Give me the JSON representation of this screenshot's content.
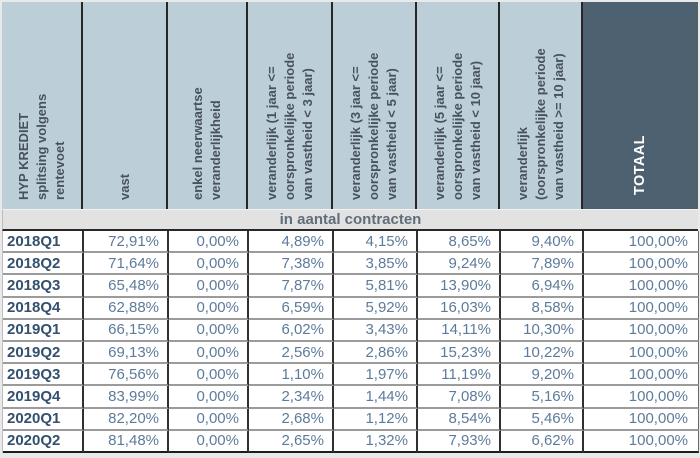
{
  "page": {
    "background": "#e9e9e9"
  },
  "table": {
    "band": "in aantal contracten",
    "columns": [
      "HYP KREDIET\nsplitsing volgens\nrentevoet",
      "vast",
      "enkel neerwaartse\nveranderlijkheid",
      "veranderlijk (1 jaar <=\noorspronkelijke periode\nvan vastheid < 3 jaar)",
      "veranderlijk (3 jaar <=\noorspronkelijke periode\nvan vastheid < 5 jaar)",
      "veranderlijk (5 jaar <=\noorspronkelijke periode\nvan vastheid < 10 jaar)",
      "veranderlijk\n(oorspronkelijke periode\nvan vastheid >= 10 jaar)",
      "TOTAAL"
    ],
    "rows": [
      {
        "label": "2018Q1",
        "values": [
          "72,91%",
          "0,00%",
          "4,89%",
          "4,15%",
          "8,65%",
          "9,40%",
          "100,00%"
        ]
      },
      {
        "label": "2018Q2",
        "values": [
          "71,64%",
          "0,00%",
          "7,38%",
          "3,85%",
          "9,24%",
          "7,89%",
          "100,00%"
        ]
      },
      {
        "label": "2018Q3",
        "values": [
          "65,48%",
          "0,00%",
          "7,87%",
          "5,81%",
          "13,90%",
          "6,94%",
          "100,00%"
        ]
      },
      {
        "label": "2018Q4",
        "values": [
          "62,88%",
          "0,00%",
          "6,59%",
          "5,92%",
          "16,03%",
          "8,58%",
          "100,00%"
        ]
      },
      {
        "label": "2019Q1",
        "values": [
          "66,15%",
          "0,00%",
          "6,02%",
          "3,43%",
          "14,11%",
          "10,30%",
          "100,00%"
        ]
      },
      {
        "label": "2019Q2",
        "values": [
          "69,13%",
          "0,00%",
          "2,56%",
          "2,86%",
          "15,23%",
          "10,22%",
          "100,00%"
        ]
      },
      {
        "label": "2019Q3",
        "values": [
          "76,56%",
          "0,00%",
          "1,10%",
          "1,97%",
          "11,19%",
          "9,20%",
          "100,00%"
        ]
      },
      {
        "label": "2019Q4",
        "values": [
          "83,99%",
          "0,00%",
          "2,34%",
          "1,44%",
          "7,08%",
          "5,16%",
          "100,00%"
        ]
      },
      {
        "label": "2020Q1",
        "values": [
          "82,20%",
          "0,00%",
          "2,68%",
          "1,12%",
          "8,54%",
          "5,46%",
          "100,00%"
        ]
      },
      {
        "label": "2020Q2",
        "values": [
          "81,48%",
          "0,00%",
          "2,65%",
          "1,32%",
          "7,93%",
          "6,62%",
          "100,00%"
        ]
      }
    ],
    "colors": {
      "header_bg": "#bccfd8",
      "totaal_bg": "#4d6170",
      "band_bg": "#e2e2e2",
      "header_text": "#47525c",
      "totaal_text": "#ffffff",
      "label_text": "#33506e",
      "value_text": "#5d7b9a",
      "band_text": "#5f6e7a"
    }
  },
  "chart_data": {
    "type": "table",
    "title": "HYP KREDIET splitsing volgens rentevoet",
    "unit_note": "in aantal contracten",
    "categories": [
      "2018Q1",
      "2018Q2",
      "2018Q3",
      "2018Q4",
      "2019Q1",
      "2019Q2",
      "2019Q3",
      "2019Q4",
      "2020Q1",
      "2020Q2"
    ],
    "values_unit": "%",
    "series": [
      {
        "name": "vast",
        "values": [
          72.91,
          71.64,
          65.48,
          62.88,
          66.15,
          69.13,
          76.56,
          83.99,
          82.2,
          81.48
        ]
      },
      {
        "name": "enkel neerwaartse veranderlijkheid",
        "values": [
          0.0,
          0.0,
          0.0,
          0.0,
          0.0,
          0.0,
          0.0,
          0.0,
          0.0,
          0.0
        ]
      },
      {
        "name": "veranderlijk (1 jaar <= oorspronkelijke periode van vastheid < 3 jaar)",
        "values": [
          4.89,
          7.38,
          7.87,
          6.59,
          6.02,
          2.56,
          1.1,
          2.34,
          2.68,
          2.65
        ]
      },
      {
        "name": "veranderlijk (3 jaar <= oorspronkelijke periode van vastheid < 5 jaar)",
        "values": [
          4.15,
          3.85,
          5.81,
          5.92,
          3.43,
          2.86,
          1.97,
          1.44,
          1.12,
          1.32
        ]
      },
      {
        "name": "veranderlijk (5 jaar <= oorspronkelijke periode van vastheid < 10 jaar)",
        "values": [
          8.65,
          9.24,
          13.9,
          16.03,
          14.11,
          15.23,
          11.19,
          7.08,
          8.54,
          7.93
        ]
      },
      {
        "name": "veranderlijk (oorspronkelijke periode van vastheid >= 10 jaar)",
        "values": [
          9.4,
          7.89,
          6.94,
          8.58,
          10.3,
          10.22,
          9.2,
          5.16,
          5.46,
          6.62
        ]
      },
      {
        "name": "TOTAAL",
        "values": [
          100.0,
          100.0,
          100.0,
          100.0,
          100.0,
          100.0,
          100.0,
          100.0,
          100.0,
          100.0
        ]
      }
    ]
  }
}
